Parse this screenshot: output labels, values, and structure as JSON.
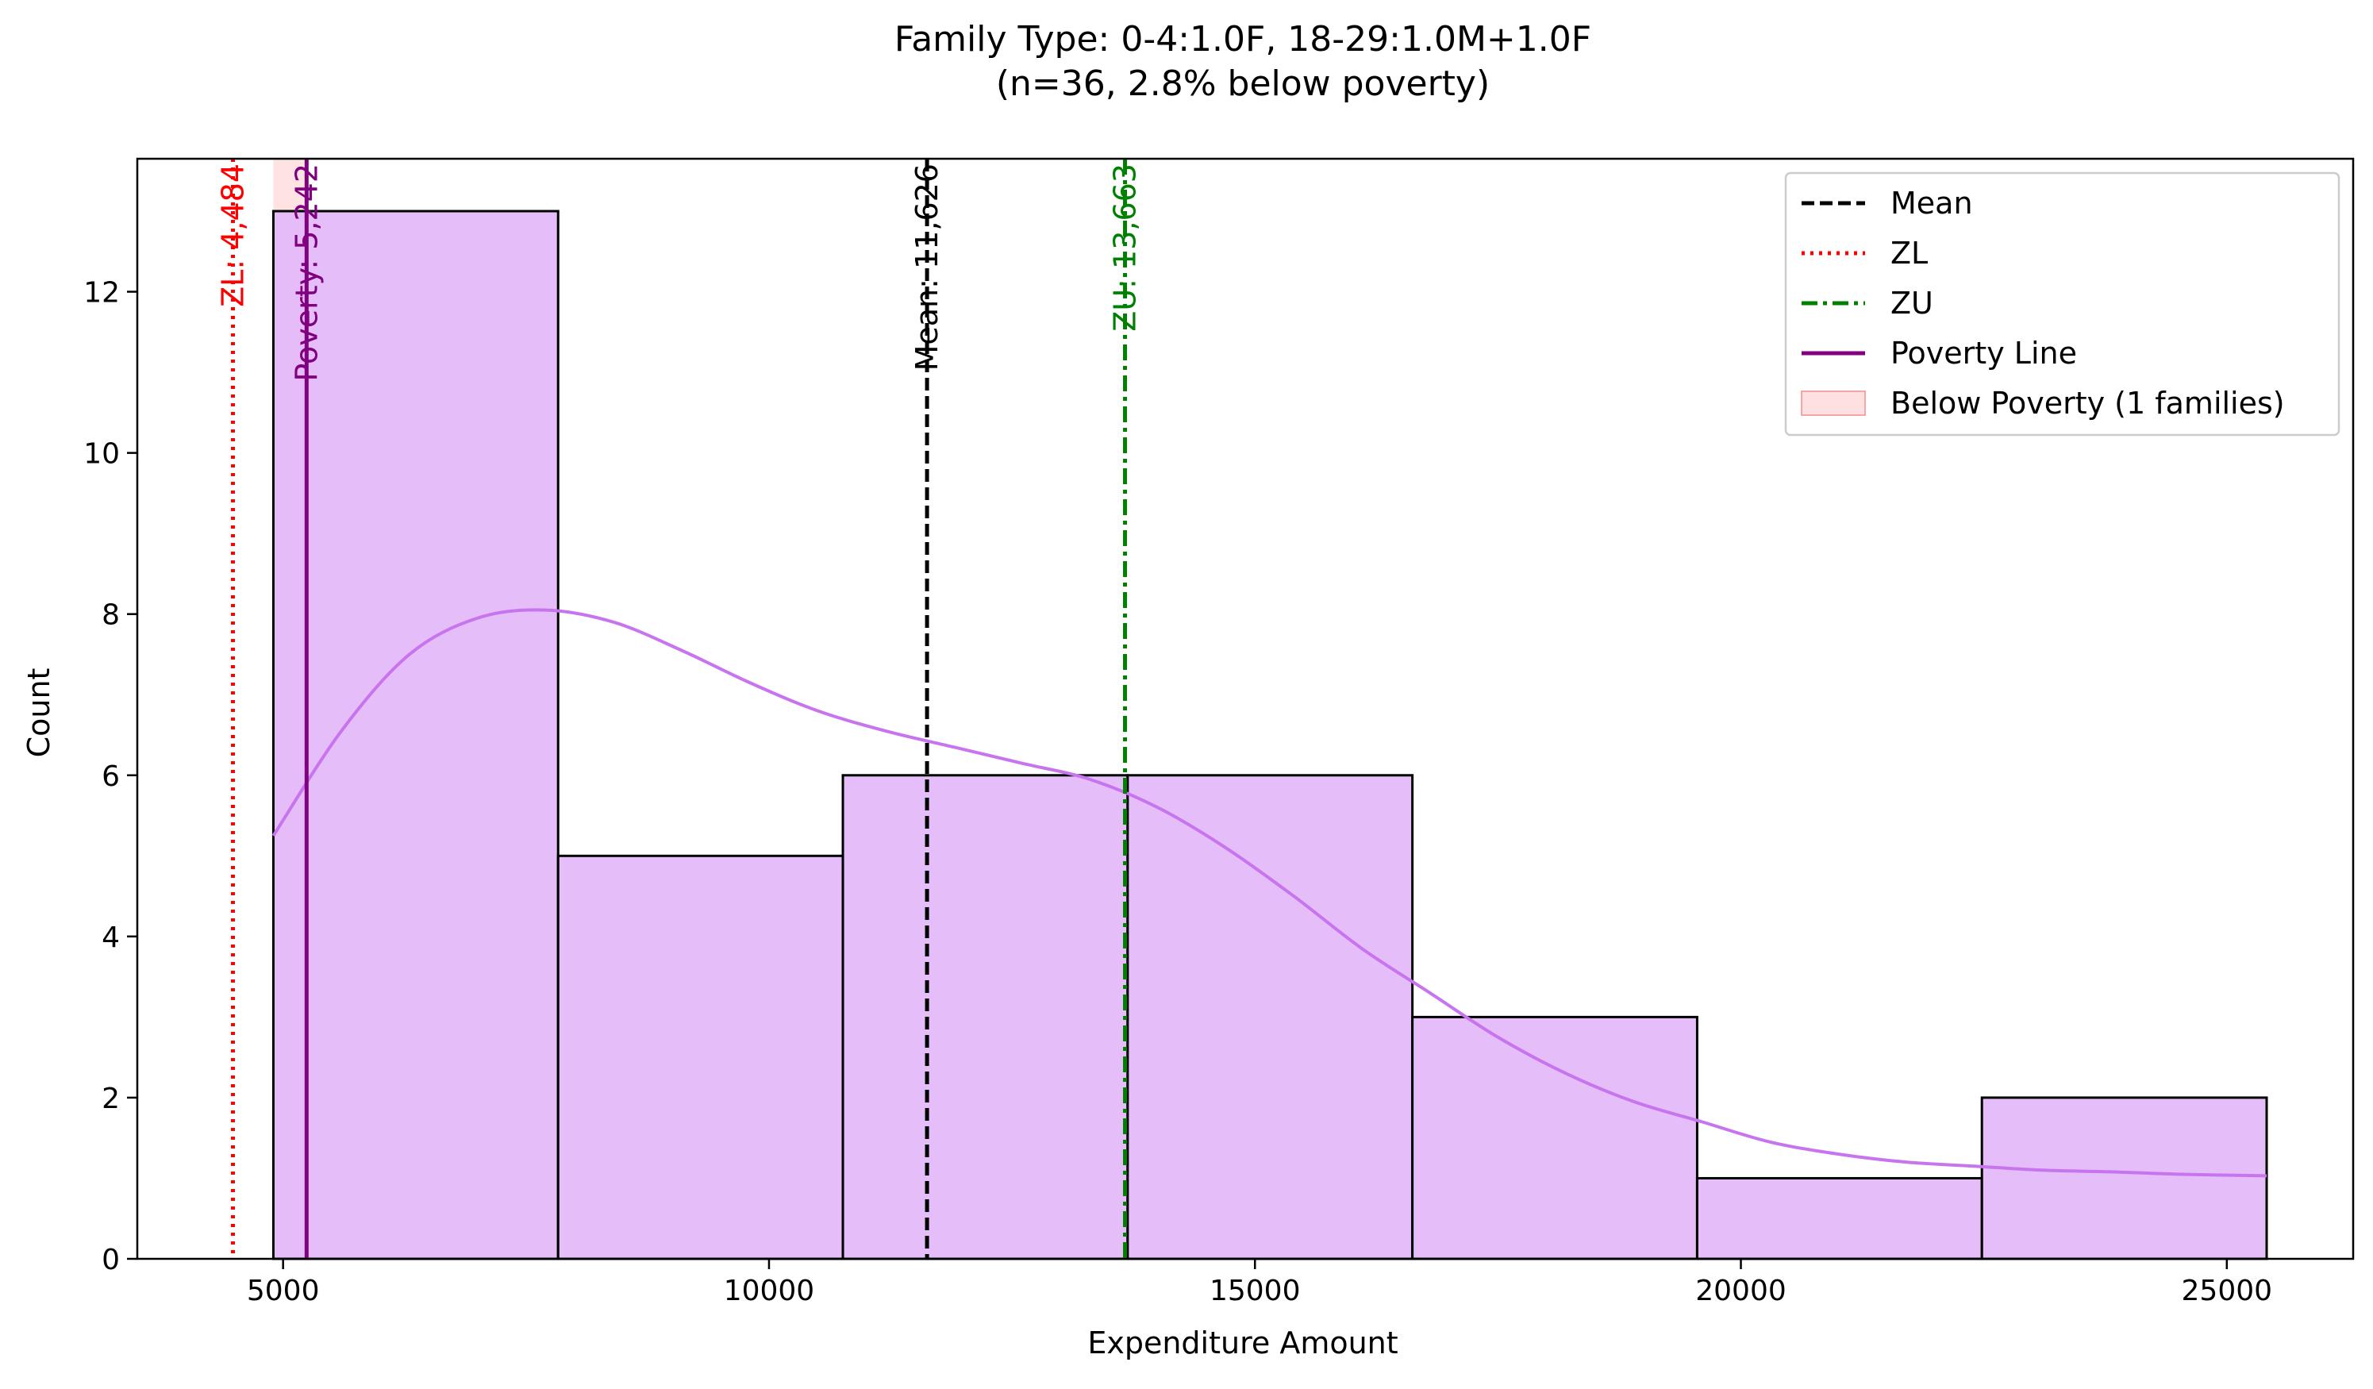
{
  "chart_data": {
    "type": "bar",
    "title_line1": "Family Type: 0-4:1.0F, 18-29:1.0M+1.0F",
    "title_line2": "(n=36, 2.8% below poverty)",
    "xlabel": "Expenditure Amount",
    "ylabel": "Count",
    "xlim": [
      3500,
      26300
    ],
    "ylim": [
      0,
      13.65
    ],
    "xticks": [
      5000,
      10000,
      15000,
      20000,
      25000
    ],
    "yticks": [
      0,
      2,
      4,
      6,
      8,
      10,
      12
    ],
    "bins": [
      {
        "x0": 4900,
        "x1": 7830,
        "count": 13
      },
      {
        "x0": 7830,
        "x1": 10760,
        "count": 5
      },
      {
        "x0": 10760,
        "x1": 13690,
        "count": 6
      },
      {
        "x0": 13690,
        "x1": 16620,
        "count": 6
      },
      {
        "x0": 16620,
        "x1": 19550,
        "count": 3
      },
      {
        "x0": 19550,
        "x1": 22480,
        "count": 1
      },
      {
        "x0": 22480,
        "x1": 25410,
        "count": 2
      }
    ],
    "kde": {
      "x": [
        4900,
        5600,
        6300,
        7000,
        7700,
        8400,
        9100,
        9800,
        10500,
        11200,
        11900,
        12600,
        13300,
        14000,
        14700,
        15400,
        16100,
        16800,
        17500,
        18200,
        18900,
        19600,
        20300,
        21000,
        21700,
        22400,
        23100,
        23800,
        24500,
        25410
      ],
      "y": [
        5.25,
        6.55,
        7.5,
        7.95,
        8.05,
        7.9,
        7.55,
        7.15,
        6.8,
        6.55,
        6.35,
        6.15,
        5.95,
        5.6,
        5.1,
        4.5,
        3.85,
        3.3,
        2.75,
        2.3,
        1.95,
        1.7,
        1.45,
        1.3,
        1.2,
        1.15,
        1.1,
        1.08,
        1.05,
        1.03
      ]
    },
    "reference_lines": [
      {
        "name": "Mean",
        "value": 11626,
        "label": "Mean: 11,626",
        "color": "#000000",
        "style": "dashed"
      },
      {
        "name": "ZL",
        "value": 4484,
        "label": "ZL: 4,484",
        "color": "#ff0000",
        "style": "dotted"
      },
      {
        "name": "ZU",
        "value": 13663,
        "label": "ZU: 13,663",
        "color": "#008000",
        "style": "dashdot"
      },
      {
        "name": "Poverty Line",
        "value": 5242,
        "label": "Poverty: 5,242",
        "color": "#800080",
        "style": "solid"
      }
    ],
    "below_poverty_span": {
      "x0": 4900,
      "x1": 5242,
      "color": "#ffcccc"
    },
    "legend": {
      "placement": "top-right",
      "entries": [
        "Mean",
        "ZL",
        "ZU",
        "Poverty Line",
        "Below Poverty (1 families)"
      ]
    },
    "colors": {
      "bar_fill": "#e3b8f8",
      "bar_edge": "#000000",
      "kde": "#c774ee"
    },
    "grid": false
  }
}
